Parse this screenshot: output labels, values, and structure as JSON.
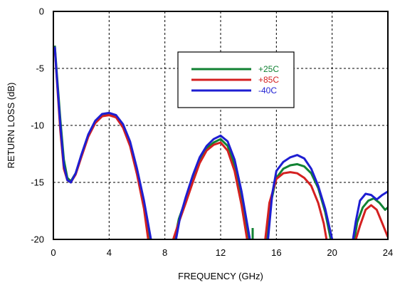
{
  "chart_data": {
    "type": "line",
    "title": "",
    "xlabel": "FREQUENCY (GHz)",
    "ylabel": "RETURN LOSS (dB)",
    "xlim": [
      0,
      24
    ],
    "ylim": [
      -20,
      0
    ],
    "xticks": [
      0,
      4,
      8,
      12,
      16,
      20,
      24
    ],
    "yticks": [
      0,
      -5,
      -10,
      -15,
      -20
    ],
    "grid": true,
    "legend_position": "top-right",
    "series": [
      {
        "name": "+25C",
        "color": "#118233",
        "segments": [
          [
            [
              0.1,
              -3.0
            ],
            [
              0.25,
              -5.5
            ],
            [
              0.5,
              -9.5
            ],
            [
              0.75,
              -13.0
            ],
            [
              1.0,
              -14.6
            ],
            [
              1.25,
              -14.9
            ],
            [
              1.6,
              -14.2
            ],
            [
              2.0,
              -12.7
            ],
            [
              2.5,
              -10.9
            ],
            [
              3.0,
              -9.7
            ],
            [
              3.5,
              -9.2
            ],
            [
              4.0,
              -9.0
            ],
            [
              4.5,
              -9.2
            ],
            [
              5.0,
              -10.0
            ],
            [
              5.5,
              -11.6
            ],
            [
              6.0,
              -14.0
            ],
            [
              6.5,
              -17.0
            ],
            [
              6.9,
              -20.0
            ]
          ],
          [
            [
              8.7,
              -20.0
            ],
            [
              9.0,
              -18.2
            ],
            [
              9.5,
              -16.5
            ],
            [
              10.0,
              -14.6
            ],
            [
              10.5,
              -13.0
            ],
            [
              11.0,
              -12.0
            ],
            [
              11.5,
              -11.5
            ],
            [
              12.0,
              -11.2
            ],
            [
              12.5,
              -11.8
            ],
            [
              13.0,
              -13.5
            ],
            [
              13.5,
              -16.5
            ],
            [
              13.8,
              -18.5
            ],
            [
              14.0,
              -20.0
            ]
          ],
          [
            [
              14.3,
              -19.0
            ],
            [
              14.3,
              -20.0
            ]
          ],
          [
            [
              15.3,
              -20.0
            ],
            [
              15.6,
              -16.8
            ],
            [
              16.0,
              -14.6
            ],
            [
              16.5,
              -13.8
            ],
            [
              17.0,
              -13.5
            ],
            [
              17.5,
              -13.4
            ],
            [
              18.0,
              -13.6
            ],
            [
              18.5,
              -14.2
            ],
            [
              19.0,
              -15.5
            ],
            [
              19.5,
              -17.6
            ],
            [
              19.9,
              -20.0
            ]
          ],
          [
            [
              21.6,
              -20.0
            ],
            [
              21.8,
              -18.5
            ],
            [
              22.2,
              -17.2
            ],
            [
              22.6,
              -16.6
            ],
            [
              23.0,
              -16.4
            ],
            [
              23.4,
              -16.8
            ],
            [
              23.8,
              -17.4
            ],
            [
              24.0,
              -17.2
            ]
          ]
        ]
      },
      {
        "name": "+85C",
        "color": "#d42020",
        "segments": [
          [
            [
              0.1,
              -3.2
            ],
            [
              0.25,
              -6.0
            ],
            [
              0.5,
              -10.5
            ],
            [
              0.75,
              -13.8
            ],
            [
              1.0,
              -14.8
            ],
            [
              1.25,
              -15.0
            ],
            [
              1.6,
              -14.3
            ],
            [
              2.0,
              -12.8
            ],
            [
              2.5,
              -11.0
            ],
            [
              3.0,
              -9.8
            ],
            [
              3.5,
              -9.2
            ],
            [
              4.0,
              -9.1
            ],
            [
              4.5,
              -9.3
            ],
            [
              5.0,
              -10.2
            ],
            [
              5.5,
              -11.8
            ],
            [
              6.0,
              -14.3
            ],
            [
              6.5,
              -17.3
            ],
            [
              6.8,
              -20.0
            ]
          ],
          [
            [
              8.6,
              -20.0
            ],
            [
              9.0,
              -18.5
            ],
            [
              9.5,
              -16.8
            ],
            [
              10.0,
              -15.0
            ],
            [
              10.5,
              -13.3
            ],
            [
              11.0,
              -12.2
            ],
            [
              11.5,
              -11.7
            ],
            [
              12.0,
              -11.5
            ],
            [
              12.5,
              -12.2
            ],
            [
              13.0,
              -14.0
            ],
            [
              13.5,
              -17.0
            ],
            [
              13.9,
              -20.0
            ]
          ],
          [
            [
              15.2,
              -20.0
            ],
            [
              15.5,
              -16.8
            ],
            [
              16.0,
              -14.7
            ],
            [
              16.5,
              -14.2
            ],
            [
              17.0,
              -14.1
            ],
            [
              17.5,
              -14.2
            ],
            [
              18.0,
              -14.6
            ],
            [
              18.5,
              -15.3
            ],
            [
              19.0,
              -16.8
            ],
            [
              19.4,
              -18.6
            ],
            [
              19.6,
              -20.0
            ]
          ],
          [
            [
              21.7,
              -20.0
            ],
            [
              22.0,
              -18.8
            ],
            [
              22.4,
              -17.4
            ],
            [
              22.8,
              -17.0
            ],
            [
              23.2,
              -17.4
            ],
            [
              23.6,
              -18.6
            ],
            [
              24.0,
              -19.8
            ]
          ]
        ]
      },
      {
        "name": "-40C",
        "color": "#1e1ed2",
        "segments": [
          [
            [
              0.1,
              -3.1
            ],
            [
              0.25,
              -5.8
            ],
            [
              0.5,
              -10.0
            ],
            [
              0.75,
              -13.5
            ],
            [
              1.0,
              -14.8
            ],
            [
              1.25,
              -15.0
            ],
            [
              1.6,
              -14.2
            ],
            [
              2.0,
              -12.6
            ],
            [
              2.5,
              -10.8
            ],
            [
              3.0,
              -9.6
            ],
            [
              3.5,
              -9.0
            ],
            [
              4.0,
              -8.9
            ],
            [
              4.5,
              -9.1
            ],
            [
              5.0,
              -9.9
            ],
            [
              5.5,
              -11.4
            ],
            [
              6.0,
              -13.8
            ],
            [
              6.5,
              -16.6
            ],
            [
              7.0,
              -20.0
            ]
          ],
          [
            [
              8.8,
              -20.0
            ],
            [
              9.1,
              -18.0
            ],
            [
              9.5,
              -16.3
            ],
            [
              10.0,
              -14.4
            ],
            [
              10.5,
              -12.8
            ],
            [
              11.0,
              -11.8
            ],
            [
              11.5,
              -11.2
            ],
            [
              12.0,
              -10.9
            ],
            [
              12.5,
              -11.4
            ],
            [
              13.0,
              -13.0
            ],
            [
              13.5,
              -15.8
            ],
            [
              13.9,
              -18.6
            ],
            [
              14.1,
              -20.0
            ]
          ],
          [
            [
              15.4,
              -20.0
            ],
            [
              15.7,
              -16.0
            ],
            [
              16.0,
              -14.0
            ],
            [
              16.5,
              -13.2
            ],
            [
              17.0,
              -12.8
            ],
            [
              17.5,
              -12.6
            ],
            [
              18.0,
              -12.9
            ],
            [
              18.5,
              -13.8
            ],
            [
              19.0,
              -15.3
            ],
            [
              19.5,
              -17.3
            ],
            [
              20.0,
              -20.0
            ]
          ],
          [
            [
              21.5,
              -20.0
            ],
            [
              21.7,
              -18.4
            ],
            [
              22.0,
              -16.6
            ],
            [
              22.4,
              -16.0
            ],
            [
              22.8,
              -16.1
            ],
            [
              23.2,
              -16.5
            ],
            [
              23.6,
              -16.1
            ],
            [
              24.0,
              -15.8
            ]
          ]
        ]
      }
    ]
  }
}
